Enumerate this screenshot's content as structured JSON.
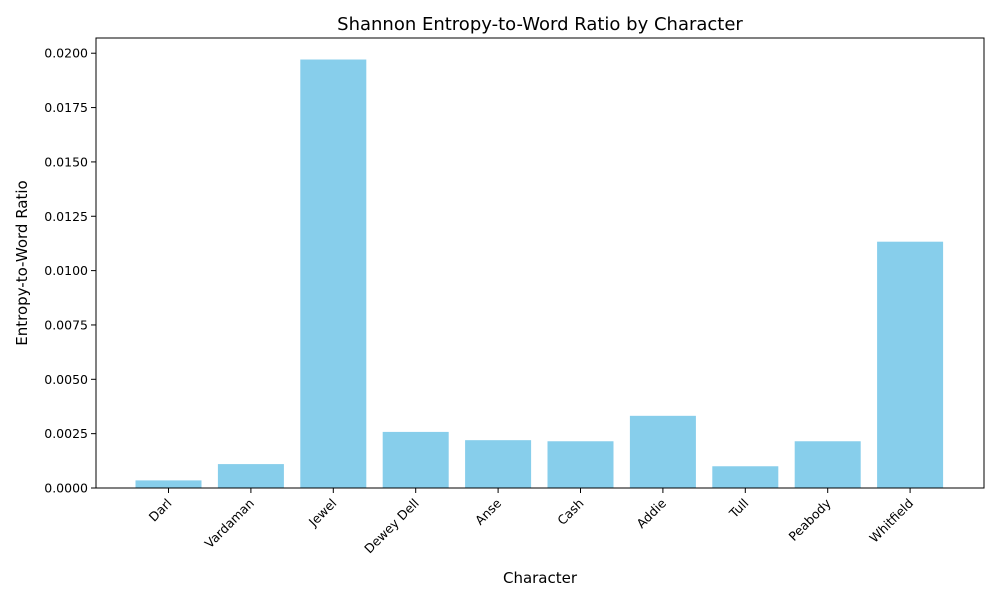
{
  "chart_data": {
    "type": "bar",
    "title": "Shannon Entropy-to-Word Ratio by Character",
    "xlabel": "Character",
    "ylabel": "Entropy-to-Word Ratio",
    "categories": [
      "Darl",
      "Vardaman",
      "Jewel",
      "Dewey Dell",
      "Anse",
      "Cash",
      "Addie",
      "Tull",
      "Peabody",
      "Whitfield"
    ],
    "values": [
      0.00035,
      0.0011,
      0.01971,
      0.00258,
      0.0022,
      0.00215,
      0.00332,
      0.001,
      0.00215,
      0.01133
    ],
    "ylim": [
      0,
      0.0207
    ],
    "yticks": [
      "0.0000",
      "0.0025",
      "0.0050",
      "0.0075",
      "0.0100",
      "0.0125",
      "0.0150",
      "0.0175",
      "0.0200"
    ],
    "grid": false,
    "bar_color": "#87CEEB"
  }
}
